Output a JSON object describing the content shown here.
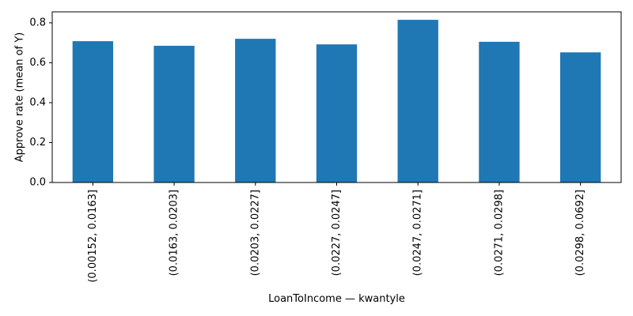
{
  "chart_data": {
    "type": "bar",
    "categories": [
      "(0.00152, 0.0163]",
      "(0.0163, 0.0203]",
      "(0.0203, 0.0227]",
      "(0.0227, 0.0247]",
      "(0.0247, 0.0271]",
      "(0.0271, 0.0298]",
      "(0.0298, 0.0692]"
    ],
    "values": [
      0.708,
      0.685,
      0.72,
      0.692,
      0.815,
      0.705,
      0.652
    ],
    "xlabel": "LoanToIncome — kwantyle",
    "ylabel": "Approve rate (mean of Y)",
    "ylim": [
      0,
      0.855
    ],
    "yticks": [
      0.0,
      0.2,
      0.4,
      0.6,
      0.8
    ],
    "ytick_labels": [
      "0.0",
      "0.2",
      "0.4",
      "0.6",
      "0.8"
    ],
    "bar_color": "#1f77b4",
    "grid": false,
    "legend": "none"
  }
}
